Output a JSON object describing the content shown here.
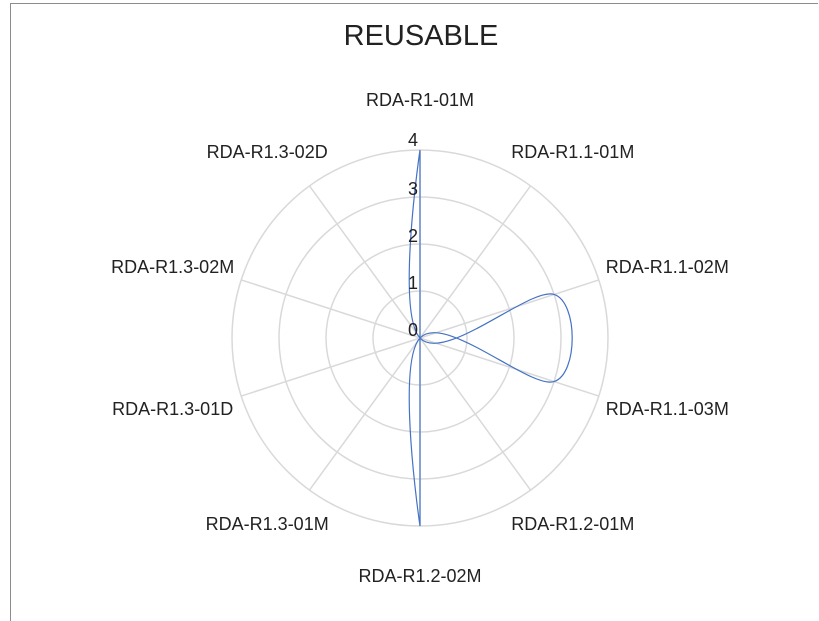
{
  "chart_data": {
    "type": "radar",
    "title": "REUSABLE",
    "categories": [
      "RDA-R1-01M",
      "RDA-R1.1-01M",
      "RDA-R1.1-02M",
      "RDA-R1.1-03M",
      "RDA-R1.2-01M",
      "RDA-R1.2-02M",
      "RDA-R1.3-01M",
      "RDA-R1.3-01D",
      "RDA-R1.3-02M",
      "RDA-R1.3-02D"
    ],
    "series": [
      {
        "values": [
          4,
          0,
          3,
          3,
          0,
          4,
          0,
          0,
          0,
          0
        ],
        "color": "#4472c4"
      }
    ],
    "rlim": [
      0,
      4
    ],
    "ticks": [
      "0",
      "1",
      "2",
      "3",
      "4"
    ],
    "grid": true,
    "smooth": true,
    "colors": {
      "grid": "#d9d9d9",
      "series": "#4472c4",
      "text": "#222222"
    }
  }
}
